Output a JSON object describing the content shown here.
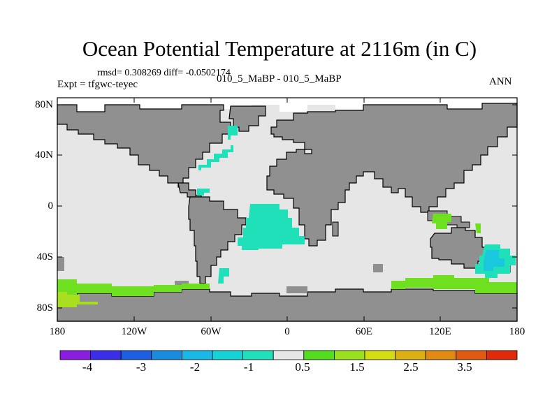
{
  "plot": {
    "title": "Ocean Potential Temperature at 2116m (in C)",
    "stats": "rmsd= 0.308269 diff= -0.0502174",
    "expt": "Expt = tfgwc-teyec",
    "cases": "010_5_MaBP - 010_5_MaBP",
    "season": "ANN"
  },
  "axes": {
    "lat_labels": [
      "80N",
      "40N",
      "0",
      "40S",
      "80S"
    ],
    "lon_labels": [
      "180",
      "120W",
      "60W",
      "0",
      "60E",
      "120E",
      "180"
    ]
  },
  "colorbar": {
    "colors": [
      "#8a1de0",
      "#3a2fe6",
      "#1d5fe0",
      "#1a8ce0",
      "#19b8e6",
      "#14d2d6",
      "#1fe0b8",
      "#e6e6e6",
      "#52dd1f",
      "#9be01f",
      "#d4dc12",
      "#dcb012",
      "#e08a12",
      "#e05a10",
      "#e02a0a"
    ],
    "labels": [
      "-4",
      "-3",
      "-2",
      "-1",
      "0.5",
      "1.5",
      "2.5",
      "3.5"
    ]
  },
  "map_colors": {
    "land": "#909090",
    "ocean_neutral": "#e6e6e6",
    "ice_white": "#ffffff",
    "anomaly_cyan": "#1fe0b8",
    "anomaly_cyan2": "#19c8dc",
    "anomaly_green": "#6ee01f",
    "anomaly_green2": "#a8e01f"
  }
}
